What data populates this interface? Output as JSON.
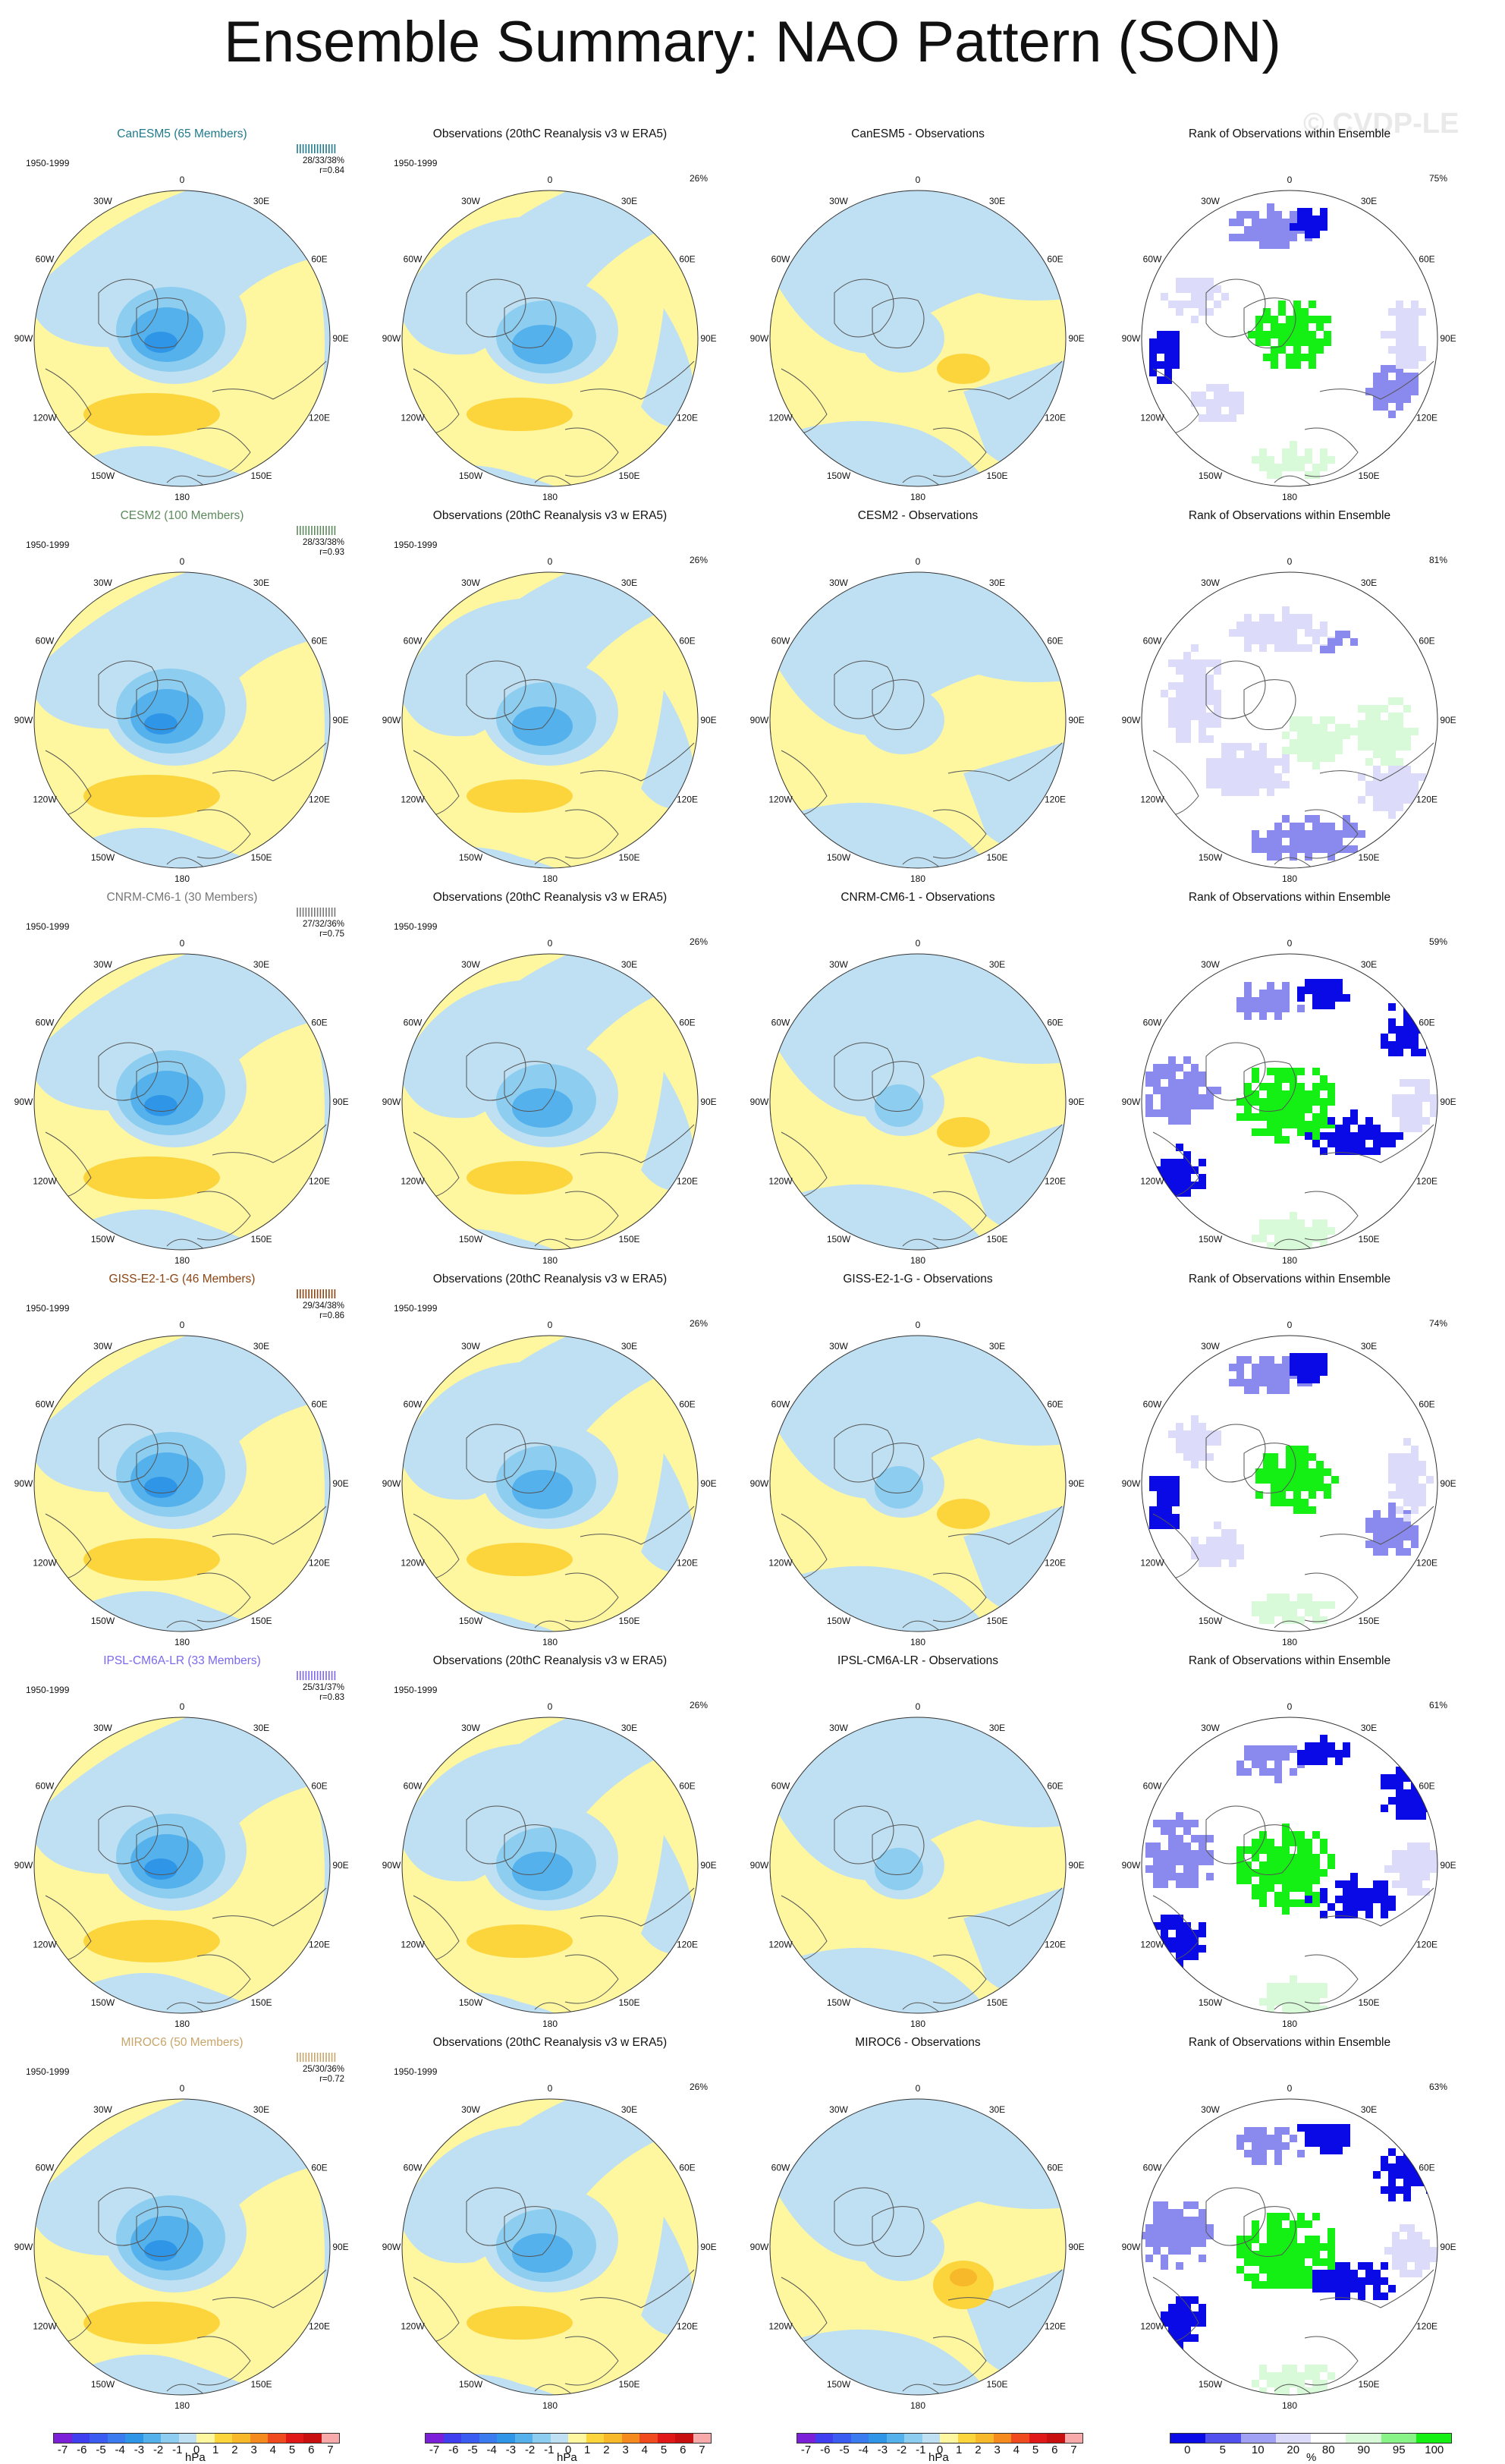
{
  "title": "Ensemble Summary: NAO Pattern (SON)",
  "watermark": "© CVDP-LE",
  "colors": {
    "land_contour": "#555555",
    "pos1": "#fef7a0",
    "pos2": "#fcd43c",
    "pos3": "#f7b82a",
    "neg1": "#bfe0f2",
    "neg2": "#8ccdf0",
    "neg3": "#54b1ec",
    "neg4": "#2f95e6",
    "rank_blue": "#0a0ae6",
    "rank_mid": "#8a8aee",
    "rank_light": "#dcdcfa",
    "rank_green": "#14f014",
    "rank_lightgreen": "#d8fad8"
  },
  "column_titles": {
    "observations": "Observations (20thC Reanalysis v3 w ERA5)",
    "rank": "Rank of Observations within Ensemble"
  },
  "period": "1950-1999",
  "obs_pct": "26%",
  "lon_labels": [
    "180",
    "150E",
    "120E",
    "90E",
    "60E",
    "30E",
    "0",
    "30W",
    "60W",
    "90W",
    "120W",
    "150W"
  ],
  "rows": [
    {
      "model": "CanESM5 (65 Members)",
      "model_color": "#1f7a8c",
      "diff_title": "CanESM5 - Observations",
      "stats": "28/33/38%",
      "r": "r=0.84",
      "rank_pct": "75%",
      "rank_style": "a"
    },
    {
      "model": "CESM2 (100 Members)",
      "model_color": "#5d8a5d",
      "diff_title": "CESM2 - Observations",
      "stats": "28/33/38%",
      "r": "r=0.93",
      "rank_pct": "81%",
      "rank_style": "b"
    },
    {
      "model": "CNRM-CM6-1 (30 Members)",
      "model_color": "#777777",
      "diff_title": "CNRM-CM6-1 - Observations",
      "stats": "27/32/36%",
      "r": "r=0.75",
      "rank_pct": "59%",
      "rank_style": "c"
    },
    {
      "model": "GISS-E2-1-G (46 Members)",
      "model_color": "#8b4513",
      "diff_title": "GISS-E2-1-G - Observations",
      "stats": "29/34/38%",
      "r": "r=0.86",
      "rank_pct": "74%",
      "rank_style": "a"
    },
    {
      "model": "IPSL-CM6A-LR (33 Members)",
      "model_color": "#7b68ee",
      "diff_title": "IPSL-CM6A-LR - Observations",
      "stats": "25/31/37%",
      "r": "r=0.83",
      "rank_pct": "61%",
      "rank_style": "c"
    },
    {
      "model": "MIROC6 (50 Members)",
      "model_color": "#c8a56a",
      "diff_title": "MIROC6 - Observations",
      "stats": "25/30/36%",
      "r": "r=0.72",
      "rank_pct": "63%",
      "rank_style": "c"
    }
  ],
  "colorbars": {
    "hpa": {
      "ticks": [
        "-7",
        "-6",
        "-5",
        "-4",
        "-3",
        "-2",
        "-1",
        "0",
        "1",
        "2",
        "3",
        "4",
        "5",
        "6",
        "7"
      ],
      "unit": "hPa",
      "colors": [
        "#7b1fd8",
        "#3f3ff0",
        "#3a5cf0",
        "#3b7bf0",
        "#2f95e6",
        "#54b1ec",
        "#8ccdf0",
        "#bfe0f2",
        "#fef7a0",
        "#fcd43c",
        "#f7b82a",
        "#f58a1e",
        "#ef4b1f",
        "#e01818",
        "#c81010",
        "#f8aaaa"
      ]
    },
    "rank": {
      "ticks": [
        "0",
        "5",
        "10",
        "20",
        "80",
        "90",
        "95",
        "100"
      ],
      "unit": "%",
      "colors": [
        "#0a0ae6",
        "#5050ee",
        "#a0a0f4",
        "#dcdcfa",
        "#ffffff",
        "#d8fad8",
        "#88f488",
        "#14f014"
      ]
    }
  }
}
